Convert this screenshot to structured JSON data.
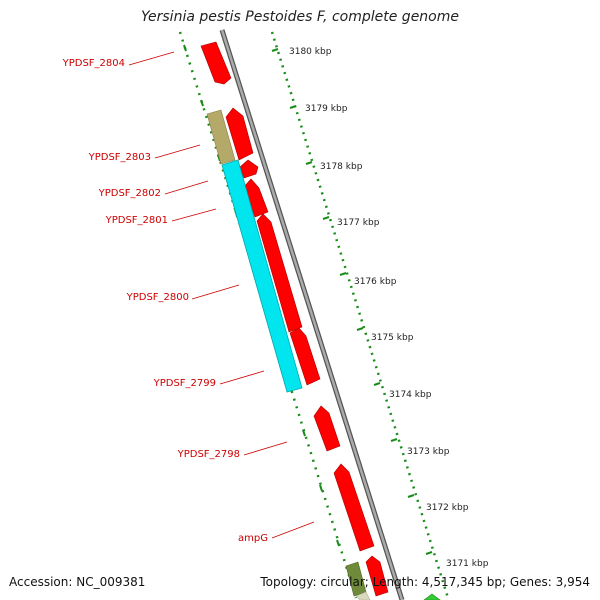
{
  "title": "Yersinia pestis Pestoides F, complete genome",
  "accession": "Accession: NC_009381",
  "summary": "Topology: circular; Length: 4,517,345 bp; Genes: 3,954",
  "gene_labels": [
    "YPDSF_2804",
    "YPDSF_2803",
    "YPDSF_2802",
    "YPDSF_2801",
    "YPDSF_2800",
    "YPDSF_2799",
    "YPDSF_2798",
    "ampG"
  ],
  "scale_labels": [
    "3180 kbp",
    "3179 kbp",
    "3178 kbp",
    "3177 kbp",
    "3176 kbp",
    "3175 kbp",
    "3174 kbp",
    "3173 kbp",
    "3172 kbp",
    "3171 kbp"
  ],
  "colors": {
    "cds": "#ff0000",
    "highlight": "#00e5ee",
    "feature": "#b5a96a",
    "backbone": "#888888",
    "ticks": "#1a8c1a",
    "labels": "#cc0000",
    "rna": "#33cc33"
  }
}
